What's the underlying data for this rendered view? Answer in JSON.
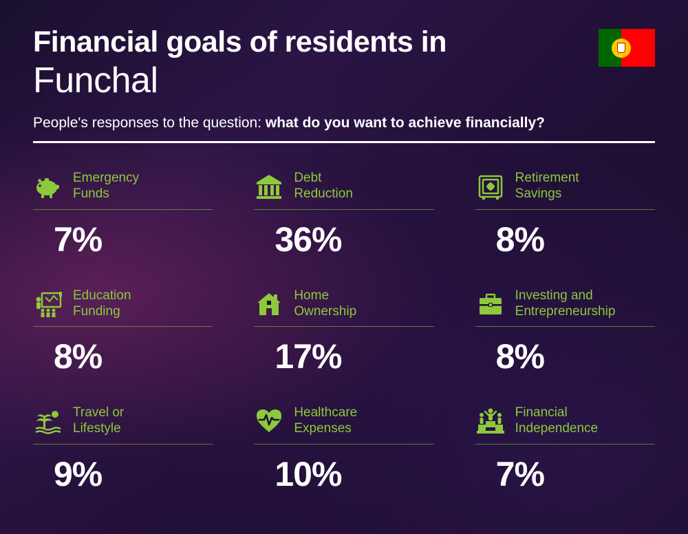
{
  "colors": {
    "accent": "#8ec83c",
    "text": "#ffffff",
    "flag_green": "#006600",
    "flag_red": "#ff0000",
    "flag_yellow": "#ffcc00"
  },
  "header": {
    "title_line1": "Financial goals of residents in",
    "title_line2": "Funchal",
    "subtitle_prefix": "People's responses to the question: ",
    "subtitle_bold": "what do you want to achieve financially?"
  },
  "items": [
    {
      "label": "Emergency Funds",
      "value": "7%",
      "icon": "piggy-bank-icon"
    },
    {
      "label": "Debt Reduction",
      "value": "36%",
      "icon": "bank-icon"
    },
    {
      "label": "Retirement Savings",
      "value": "8%",
      "icon": "safe-icon"
    },
    {
      "label": "Education Funding",
      "value": "8%",
      "icon": "education-icon"
    },
    {
      "label": "Home Ownership",
      "value": "17%",
      "icon": "house-icon"
    },
    {
      "label": "Investing and Entrepreneurship",
      "value": "8%",
      "icon": "briefcase-icon"
    },
    {
      "label": "Travel or Lifestyle",
      "value": "9%",
      "icon": "travel-icon"
    },
    {
      "label": "Healthcare Expenses",
      "value": "10%",
      "icon": "healthcare-icon"
    },
    {
      "label": "Financial Independence",
      "value": "7%",
      "icon": "independence-icon"
    }
  ]
}
